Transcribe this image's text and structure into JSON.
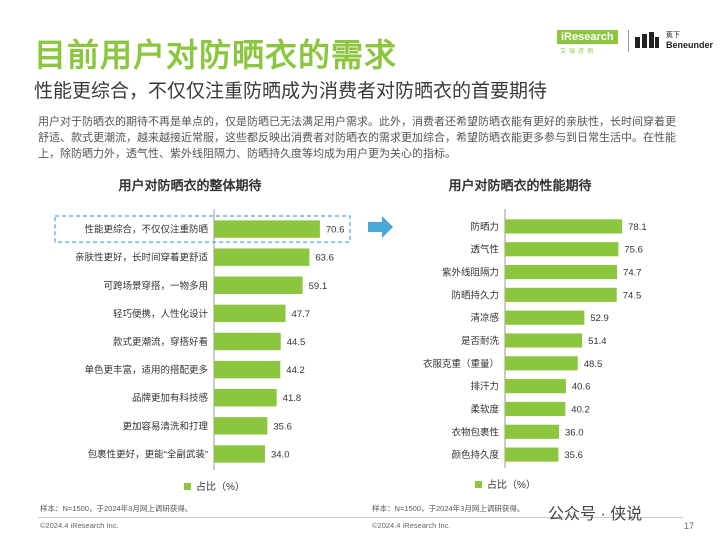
{
  "header": {
    "title": "目前用户对防晒衣的需求",
    "subtitle": "性能更综合，不仅仅注重防晒成为消费者对防晒衣的首要期待",
    "intro": "用户对于防晒衣的期待不再是单点的，仅是防晒已无法满足用户需求。此外，消费者还希望防晒衣能有更好的亲肤性，长时间穿着更舒适、款式更潮流，越来越接近常服，这些都反映出消费者对防晒衣的需求更加综合，希望防晒衣能更多参与到日常生活中。在性能上，除防晒力外，透气性、紫外线阻隔力、防晒持久度等均成为用户更为关心的指标。"
  },
  "logos": {
    "iresearch": "iResearch",
    "iresearch_sub": "艾瑞咨询",
    "beneunder_cn": "蕉下",
    "beneunder_en": "Beneunder"
  },
  "colors": {
    "accent": "#8cc63f",
    "highlight": "#4aa8d8"
  },
  "chart_data": [
    {
      "type": "bar",
      "orientation": "horizontal",
      "title": "用户对防晒衣的整体期待",
      "categories": [
        "性能更综合，不仅仅注重防晒",
        "亲肤性更好，长时间穿着更舒适",
        "可跨场景穿搭，一物多用",
        "轻巧便携，人性化设计",
        "款式更潮流，穿搭好看",
        "单色更丰富，适用的搭配更多",
        "品牌更加有科技感",
        "更加容易清洗和打理",
        "包裹性更好，更能“全副武装”"
      ],
      "series": [
        {
          "name": "占比（%）",
          "values": [
            70.6,
            63.6,
            59.1,
            47.7,
            44.5,
            44.2,
            41.8,
            35.6,
            34.0
          ]
        }
      ],
      "highlighted_index": 0,
      "legend_position": "bottom",
      "footnote": "样本：N=1500，于2024年3月网上调研获得。",
      "copyright": "©2024.4 iResearch Inc."
    },
    {
      "type": "bar",
      "orientation": "horizontal",
      "title": "用户对防晒衣的性能期待",
      "categories": [
        "防晒力",
        "透气性",
        "紫外线阻隔力",
        "防晒持久力",
        "清凉感",
        "是否耐洗",
        "衣服克重（重量）",
        "排汗力",
        "柔软度",
        "衣物包裹性",
        "颜色持久度"
      ],
      "series": [
        {
          "name": "占比（%）",
          "values": [
            78.1,
            75.6,
            74.7,
            74.5,
            52.9,
            51.4,
            48.5,
            40.6,
            40.2,
            36.0,
            35.6
          ]
        }
      ],
      "legend_position": "bottom",
      "footnote": "样本：N=1500，于2024年3月网上调研获得。",
      "copyright": "©2024.4 iResearch Inc."
    }
  ],
  "footer": {
    "page_number": "17",
    "watermark": "公众号 · 侠说"
  }
}
